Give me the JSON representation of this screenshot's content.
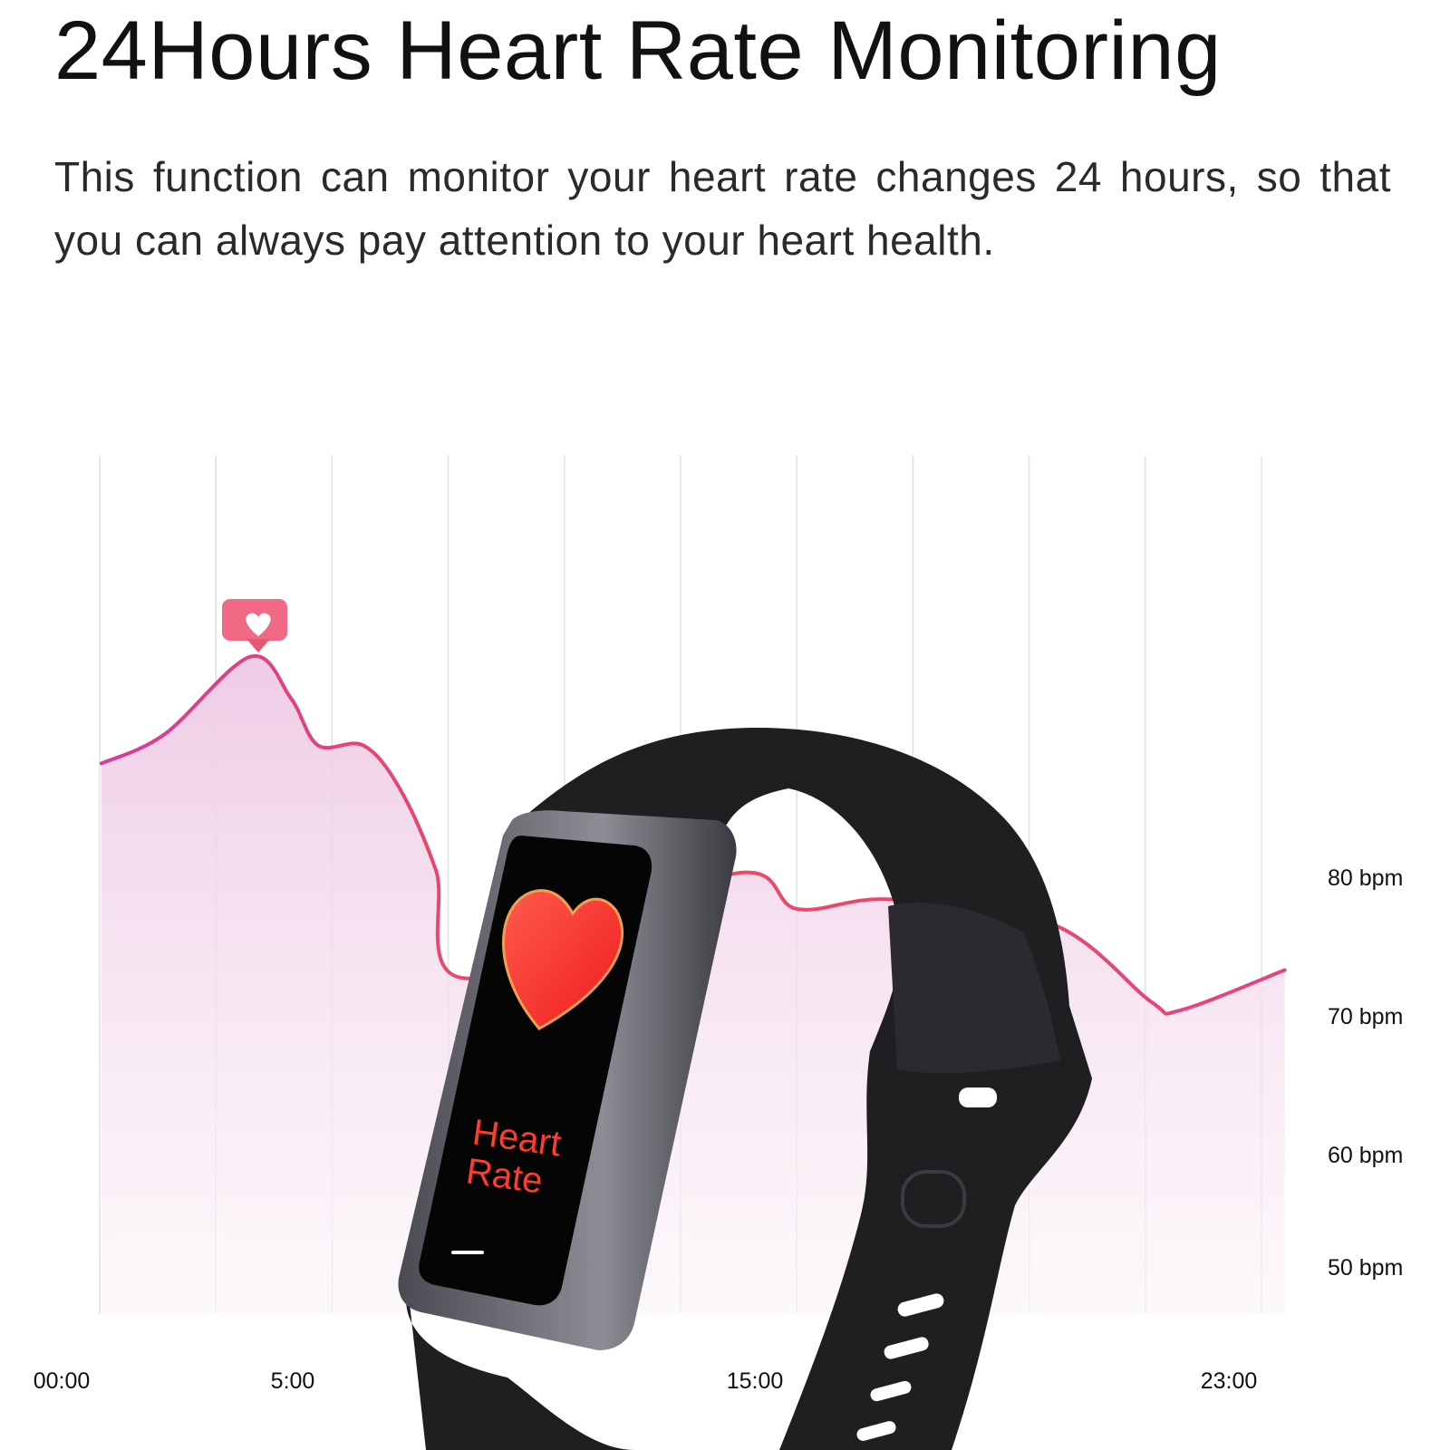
{
  "header": {
    "title": "24Hours Heart Rate Monitoring",
    "subtitle": "This function can monitor your heart rate changes 24 hours, so that you can always pay attention to your heart health."
  },
  "colors": {
    "line": "#e8457a",
    "fill": "#f0d6ea",
    "badge": "#f06a85",
    "watch_band": "#1c1c1e",
    "screen_heart": "#ff3b30"
  },
  "watch": {
    "screen_label_line1": "Heart",
    "screen_label_line2": "Rate"
  },
  "chart_data": {
    "type": "area",
    "title": "",
    "xlabel": "",
    "ylabel": "",
    "x_ticks": [
      "00:00",
      "5:00",
      "15:00",
      "23:00"
    ],
    "y_ticks": [
      "80 bpm",
      "70 bpm",
      "60 bpm",
      "50 bpm"
    ],
    "grid": "vertical",
    "peak_marker": "heart-badge",
    "series": [
      {
        "x": [
          0.9,
          2.3,
          4.2,
          5.1,
          5.7,
          6.7,
          7.5,
          8.3,
          9.0,
          14.8,
          16.0,
          17.6,
          20.4,
          22.1,
          22.6,
          24.4
        ],
        "y": [
          86.9,
          89.0,
          94.6,
          91.6,
          88.2,
          88.2,
          85.1,
          79.2,
          71.4,
          78.9,
          76.4,
          77.1,
          75.3,
          69.7,
          69.1,
          72.0
        ]
      }
    ]
  }
}
